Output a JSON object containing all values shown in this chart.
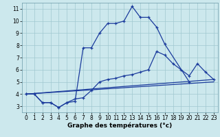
{
  "bg_color": "#cce8ed",
  "grid_color": "#a0c8d0",
  "line_color": "#1a3a9c",
  "xlabel": "Graphe des températures (°c)",
  "line1_x": [
    0,
    1,
    2,
    3,
    4,
    5,
    6,
    7,
    8,
    9,
    10,
    11,
    12,
    13,
    14,
    15,
    16,
    17,
    20
  ],
  "line1_y": [
    4.0,
    4.0,
    3.3,
    3.3,
    2.9,
    3.3,
    3.4,
    7.8,
    7.8,
    9.0,
    9.8,
    9.8,
    10.0,
    11.2,
    10.3,
    10.3,
    9.5,
    8.1,
    5.0
  ],
  "line2_x": [
    0,
    1,
    2,
    3,
    4,
    5,
    6,
    7,
    8,
    9,
    10,
    11,
    12,
    13,
    14,
    15,
    16,
    17,
    18,
    19,
    20,
    21,
    22,
    23
  ],
  "line2_y": [
    4.0,
    4.0,
    3.3,
    3.3,
    2.9,
    3.3,
    3.6,
    3.7,
    4.3,
    5.0,
    5.2,
    5.3,
    5.5,
    5.6,
    5.8,
    6.0,
    7.5,
    7.2,
    6.5,
    6.0,
    5.5,
    6.5,
    5.8,
    5.2
  ],
  "line3_x": [
    0,
    23
  ],
  "line3_y": [
    4.0,
    5.2
  ],
  "line4_x": [
    0,
    23
  ],
  "line4_y": [
    4.0,
    5.0
  ],
  "xlim": [
    -0.5,
    23.5
  ],
  "ylim": [
    2.5,
    11.5
  ],
  "xticks": [
    0,
    1,
    2,
    3,
    4,
    5,
    6,
    7,
    8,
    9,
    10,
    11,
    12,
    13,
    14,
    15,
    16,
    17,
    18,
    19,
    20,
    21,
    22,
    23
  ],
  "yticks": [
    3,
    4,
    5,
    6,
    7,
    8,
    9,
    10,
    11
  ],
  "lw": 0.9,
  "ms": 3.5,
  "mew": 0.9
}
